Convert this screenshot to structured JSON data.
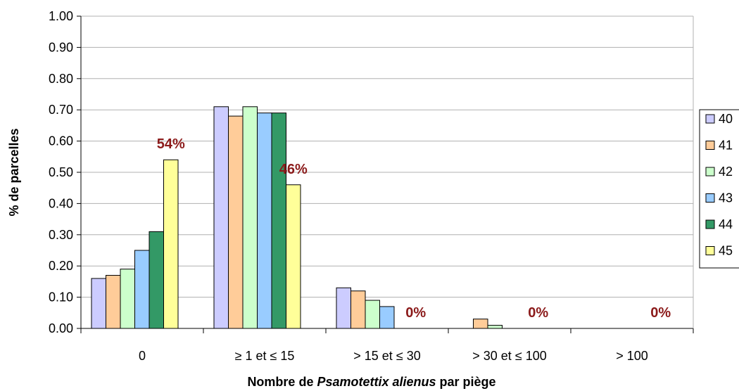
{
  "chart_data": {
    "type": "bar",
    "title": "",
    "xlabel_parts": [
      "Nombre de ",
      "Psamotettix alienus",
      " par piège"
    ],
    "ylabel": "% de parcelles",
    "ylim": [
      0,
      1
    ],
    "yticks": [
      "0.00",
      "0.10",
      "0.20",
      "0.30",
      "0.40",
      "0.50",
      "0.60",
      "0.70",
      "0.80",
      "0.90",
      "1.00"
    ],
    "categories": [
      "0",
      "≥ 1 et ≤ 15",
      "> 15 et ≤ 30",
      "> 30 et ≤ 100",
      "> 100"
    ],
    "series": [
      {
        "name": "40",
        "color": "#ccccff",
        "values": [
          0.16,
          0.71,
          0.13,
          0.0,
          0.0
        ]
      },
      {
        "name": "41",
        "color": "#ffcc99",
        "values": [
          0.17,
          0.68,
          0.12,
          0.03,
          0.0
        ]
      },
      {
        "name": "42",
        "color": "#ccffcc",
        "values": [
          0.19,
          0.71,
          0.09,
          0.01,
          0.0
        ]
      },
      {
        "name": "43",
        "color": "#99ccff",
        "values": [
          0.25,
          0.69,
          0.07,
          0.0,
          0.0
        ]
      },
      {
        "name": "44",
        "color": "#339966",
        "values": [
          0.31,
          0.69,
          0.0,
          0.0,
          0.0
        ]
      },
      {
        "name": "45",
        "color": "#ffff99",
        "values": [
          0.54,
          0.46,
          0.0,
          0.0,
          0.0
        ]
      }
    ],
    "annotations": [
      {
        "category": 0,
        "series": 5,
        "text": "54%"
      },
      {
        "category": 1,
        "series": 5,
        "text": "46%"
      },
      {
        "category": 2,
        "series": 5,
        "text": "0%"
      },
      {
        "category": 3,
        "series": 5,
        "text": "0%"
      },
      {
        "category": 4,
        "series": 5,
        "text": "0%"
      }
    ],
    "grid": true,
    "legend": "right"
  }
}
